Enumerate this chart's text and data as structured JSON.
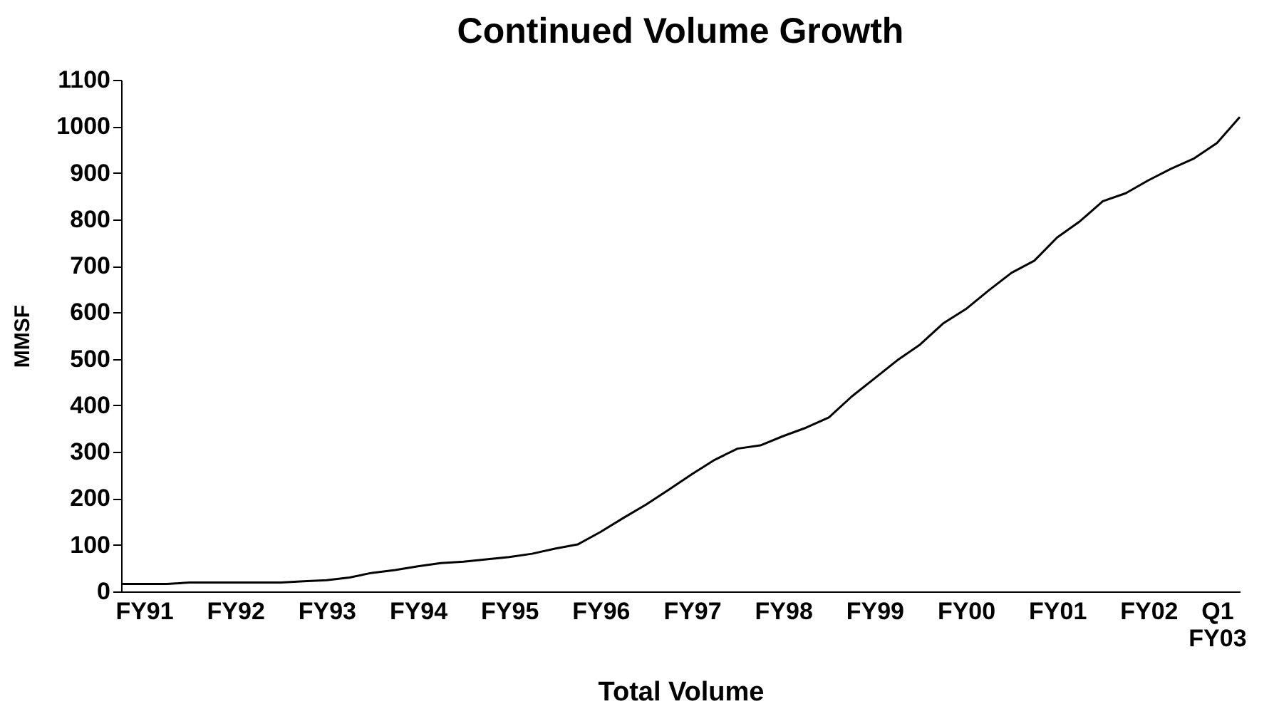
{
  "chart_data": {
    "type": "line",
    "title": "Continued Volume Growth",
    "xlabel": "Total Volume",
    "ylabel": "MMSF",
    "categories": [
      null,
      "FY91",
      null,
      null,
      null,
      "FY92",
      null,
      null,
      null,
      "FY93",
      null,
      null,
      null,
      "FY94",
      null,
      null,
      null,
      "FY95",
      null,
      null,
      null,
      "FY96",
      null,
      null,
      null,
      "FY97",
      null,
      null,
      null,
      "FY98",
      null,
      null,
      null,
      "FY99",
      null,
      null,
      null,
      "FY00",
      null,
      null,
      null,
      "FY01",
      null,
      null,
      null,
      "FY02",
      null,
      null,
      "Q1\nFY03",
      null
    ],
    "series": [
      {
        "color": "#000000",
        "values": [
          16,
          16,
          16,
          19,
          19,
          19,
          19,
          19,
          22,
          24,
          30,
          40,
          46,
          54,
          61,
          64,
          69,
          74,
          81,
          92,
          101,
          128,
          158,
          187,
          219,
          252,
          283,
          307,
          314,
          334,
          352,
          374,
          419,
          458,
          497,
          531,
          576,
          607,
          647,
          685,
          711,
          761,
          796,
          839,
          856,
          884,
          909,
          931,
          964,
          1020
        ]
      }
    ],
    "ylim": [
      0,
      1100
    ],
    "yticks": [
      0,
      100,
      200,
      300,
      400,
      500,
      600,
      700,
      800,
      900,
      1000,
      1100
    ],
    "grid": false,
    "marker": "none",
    "line_style": "solid"
  }
}
